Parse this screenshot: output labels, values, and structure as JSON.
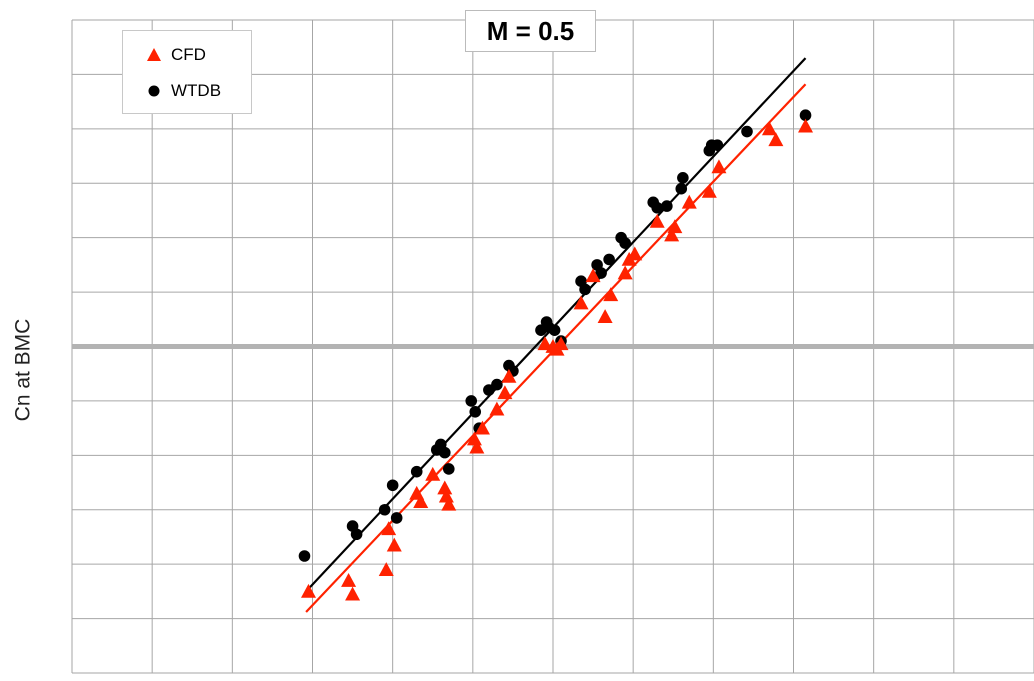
{
  "chart_data": {
    "type": "scatter",
    "title": "M = 0.5",
    "xlabel": "",
    "ylabel": "Cn at BMC",
    "xlim": [
      0,
      12
    ],
    "ylim": [
      -6,
      6
    ],
    "grid": true,
    "legend_position": "top-left",
    "series": [
      {
        "name": "CFD",
        "marker": "triangle",
        "color": "#ff2200",
        "points": [
          [
            2.95,
            -4.5
          ],
          [
            3.45,
            -4.3
          ],
          [
            3.5,
            -4.55
          ],
          [
            3.92,
            -4.1
          ],
          [
            3.95,
            -3.35
          ],
          [
            4.02,
            -3.65
          ],
          [
            4.3,
            -2.7
          ],
          [
            4.35,
            -2.85
          ],
          [
            4.5,
            -2.35
          ],
          [
            4.65,
            -2.6
          ],
          [
            4.67,
            -2.75
          ],
          [
            4.7,
            -2.9
          ],
          [
            5.02,
            -1.7
          ],
          [
            5.05,
            -1.85
          ],
          [
            5.12,
            -1.5
          ],
          [
            5.3,
            -1.15
          ],
          [
            5.4,
            -0.85
          ],
          [
            5.45,
            -0.55
          ],
          [
            5.9,
            0.05
          ],
          [
            6.0,
            0.0
          ],
          [
            6.05,
            -0.05
          ],
          [
            6.1,
            0.05
          ],
          [
            6.35,
            0.8
          ],
          [
            6.5,
            1.3
          ],
          [
            6.65,
            0.55
          ],
          [
            6.72,
            0.95
          ],
          [
            6.9,
            1.35
          ],
          [
            6.95,
            1.6
          ],
          [
            7.02,
            1.7
          ],
          [
            7.3,
            2.3
          ],
          [
            7.48,
            2.05
          ],
          [
            7.52,
            2.2
          ],
          [
            7.7,
            2.65
          ],
          [
            7.95,
            2.85
          ],
          [
            8.07,
            3.3
          ],
          [
            8.7,
            4.0
          ],
          [
            8.78,
            3.8
          ],
          [
            9.15,
            4.05
          ]
        ],
        "fit": [
          [
            2.92,
            -4.88
          ],
          [
            9.15,
            4.82
          ]
        ]
      },
      {
        "name": "WTDB",
        "marker": "circle",
        "color": "#000000",
        "points": [
          [
            2.9,
            -3.85
          ],
          [
            3.5,
            -3.3
          ],
          [
            3.55,
            -3.45
          ],
          [
            3.9,
            -3.0
          ],
          [
            4.0,
            -2.55
          ],
          [
            4.05,
            -3.15
          ],
          [
            4.3,
            -2.3
          ],
          [
            4.55,
            -1.9
          ],
          [
            4.6,
            -1.8
          ],
          [
            4.65,
            -1.95
          ],
          [
            4.7,
            -2.25
          ],
          [
            4.98,
            -1.0
          ],
          [
            5.03,
            -1.2
          ],
          [
            5.08,
            -1.5
          ],
          [
            5.2,
            -0.8
          ],
          [
            5.3,
            -0.7
          ],
          [
            5.45,
            -0.35
          ],
          [
            5.5,
            -0.45
          ],
          [
            5.85,
            0.3
          ],
          [
            5.92,
            0.45
          ],
          [
            5.95,
            0.35
          ],
          [
            6.02,
            0.3
          ],
          [
            6.1,
            0.1
          ],
          [
            6.35,
            1.2
          ],
          [
            6.4,
            1.05
          ],
          [
            6.55,
            1.5
          ],
          [
            6.6,
            1.35
          ],
          [
            6.7,
            1.6
          ],
          [
            6.85,
            2.0
          ],
          [
            6.9,
            1.9
          ],
          [
            7.25,
            2.65
          ],
          [
            7.3,
            2.55
          ],
          [
            7.42,
            2.58
          ],
          [
            7.6,
            2.9
          ],
          [
            7.62,
            3.1
          ],
          [
            7.95,
            3.6
          ],
          [
            7.98,
            3.7
          ],
          [
            8.05,
            3.7
          ],
          [
            8.42,
            3.95
          ],
          [
            9.15,
            4.25
          ]
        ],
        "fit": [
          [
            2.92,
            -4.5
          ],
          [
            9.15,
            5.3
          ]
        ]
      }
    ]
  }
}
